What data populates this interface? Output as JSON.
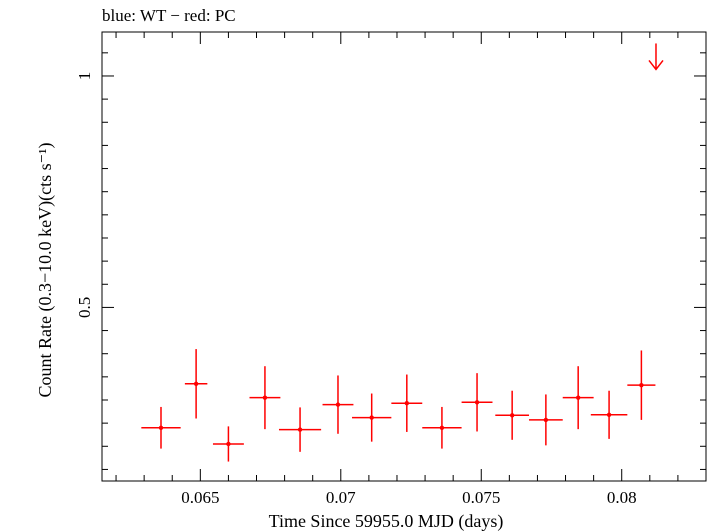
{
  "title": "blue: WT − red: PC",
  "chart_data": {
    "type": "scatter",
    "title": "blue: WT − red: PC",
    "xlabel": "Time Since 59955.0 MJD (days)",
    "ylabel": "Count Rate (0.3−10.0 keV)(cts s⁻¹)",
    "xlim": [
      0.0615,
      0.083
    ],
    "ylim": [
      0.125,
      1.095
    ],
    "x_ticks": [
      0.065,
      0.07,
      0.075,
      0.08
    ],
    "x_tick_labels": [
      "0.065",
      "0.07",
      "0.075",
      "0.08"
    ],
    "y_ticks": [
      0.5,
      1
    ],
    "y_tick_labels": [
      "0.5",
      "1"
    ],
    "grid": false,
    "series": [
      {
        "color": "#ff0000",
        "points": [
          {
            "x": 0.0636,
            "y": 0.24,
            "xerr": 0.0007,
            "yerr": 0.045
          },
          {
            "x": 0.06485,
            "y": 0.335,
            "xerr": 0.0004,
            "yerr": 0.075
          },
          {
            "x": 0.066,
            "y": 0.205,
            "xerr": 0.00055,
            "yerr": 0.038
          },
          {
            "x": 0.0673,
            "y": 0.305,
            "xerr": 0.00055,
            "yerr": 0.068
          },
          {
            "x": 0.06855,
            "y": 0.236,
            "xerr": 0.00075,
            "yerr": 0.048
          },
          {
            "x": 0.0699,
            "y": 0.29,
            "xerr": 0.00055,
            "yerr": 0.063
          },
          {
            "x": 0.0711,
            "y": 0.262,
            "xerr": 0.0007,
            "yerr": 0.052
          },
          {
            "x": 0.07235,
            "y": 0.293,
            "xerr": 0.00055,
            "yerr": 0.062
          },
          {
            "x": 0.0736,
            "y": 0.24,
            "xerr": 0.0007,
            "yerr": 0.045
          },
          {
            "x": 0.07485,
            "y": 0.295,
            "xerr": 0.00055,
            "yerr": 0.063
          },
          {
            "x": 0.0761,
            "y": 0.267,
            "xerr": 0.0006,
            "yerr": 0.053
          },
          {
            "x": 0.0773,
            "y": 0.257,
            "xerr": 0.0006,
            "yerr": 0.055
          },
          {
            "x": 0.07845,
            "y": 0.305,
            "xerr": 0.00055,
            "yerr": 0.068
          },
          {
            "x": 0.07955,
            "y": 0.268,
            "xerr": 0.00065,
            "yerr": 0.052
          },
          {
            "x": 0.0807,
            "y": 0.332,
            "xerr": 0.0005,
            "yerr": 0.075
          }
        ],
        "upper_limits": [
          {
            "x": 0.08122,
            "y": 1.04
          }
        ]
      }
    ]
  }
}
